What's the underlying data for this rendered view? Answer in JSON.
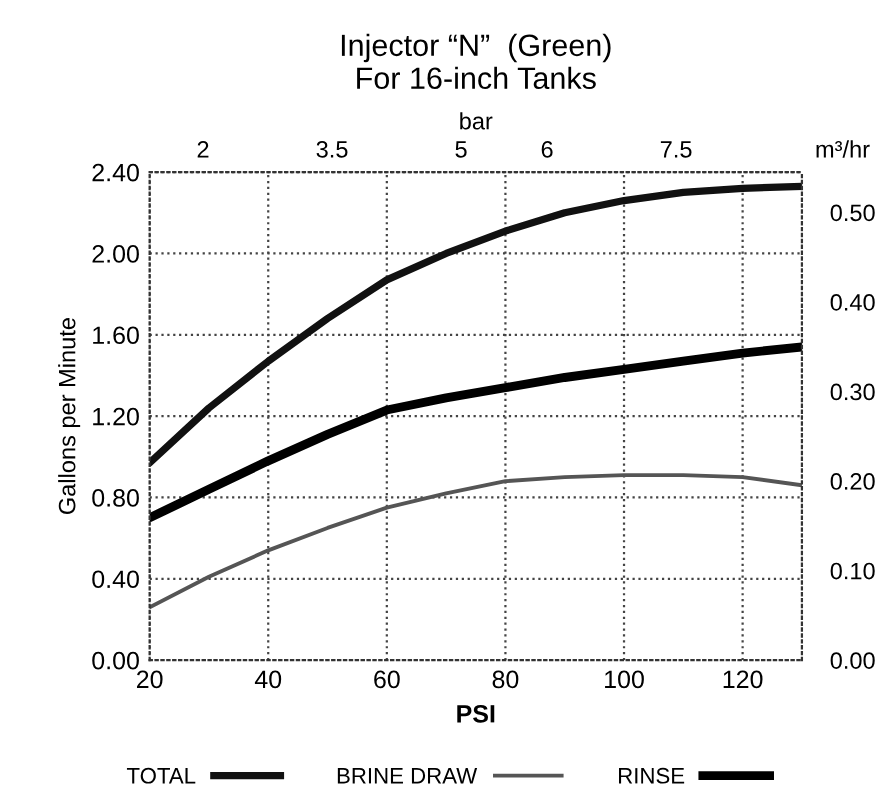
{
  "chart_data": {
    "type": "line",
    "title": "Injector “N”  (Green)\nFor 16-inch Tanks",
    "xlabel": "PSI",
    "ylabel": "Gallons per Minute",
    "x2label": "bar",
    "y2label": "m³/hr",
    "x": [
      20,
      30,
      40,
      50,
      60,
      70,
      80,
      90,
      100,
      110,
      120,
      130
    ],
    "series": [
      {
        "name": "TOTAL",
        "color": "#111111",
        "values": [
          0.97,
          1.24,
          1.47,
          1.68,
          1.87,
          2.0,
          2.11,
          2.2,
          2.26,
          2.3,
          2.32,
          2.33
        ]
      },
      {
        "name": "BRINE DRAW",
        "color": "#555555",
        "values": [
          0.26,
          0.41,
          0.54,
          0.65,
          0.75,
          0.82,
          0.88,
          0.9,
          0.91,
          0.91,
          0.9,
          0.86
        ]
      },
      {
        "name": "RINSE",
        "color": "#000000",
        "values": [
          0.7,
          0.84,
          0.98,
          1.11,
          1.23,
          1.29,
          1.34,
          1.39,
          1.43,
          1.47,
          1.51,
          1.54
        ]
      }
    ],
    "xlim": [
      20,
      130
    ],
    "xticks": [
      20,
      40,
      60,
      80,
      100,
      120
    ],
    "ylim": [
      0,
      2.4
    ],
    "yticks": [
      {
        "value": 0,
        "label": "0.00"
      },
      {
        "value": 0.4,
        "label": "0.40"
      },
      {
        "value": 0.8,
        "label": "0.80"
      },
      {
        "value": 1.2,
        "label": "1.20"
      },
      {
        "value": 1.6,
        "label": "1.60"
      },
      {
        "value": 2.0,
        "label": "2.00"
      },
      {
        "value": 2.4,
        "label": "2.40"
      }
    ],
    "x2lim": [
      1.379,
      8.963
    ],
    "x2ticks": [
      2,
      3.5,
      5,
      6,
      7.5
    ],
    "y2lim": [
      0,
      0.545
    ],
    "y2ticks": [
      {
        "value": 0,
        "label": "0.00"
      },
      {
        "value": 0.1,
        "label": "0.10"
      },
      {
        "value": 0.2,
        "label": "0.20"
      },
      {
        "value": 0.3,
        "label": "0.30"
      },
      {
        "value": 0.4,
        "label": "0.40"
      },
      {
        "value": 0.5,
        "label": "0.50"
      }
    ],
    "grid": true,
    "legend": "bottom",
    "line_style": "solid",
    "marker": "none"
  }
}
